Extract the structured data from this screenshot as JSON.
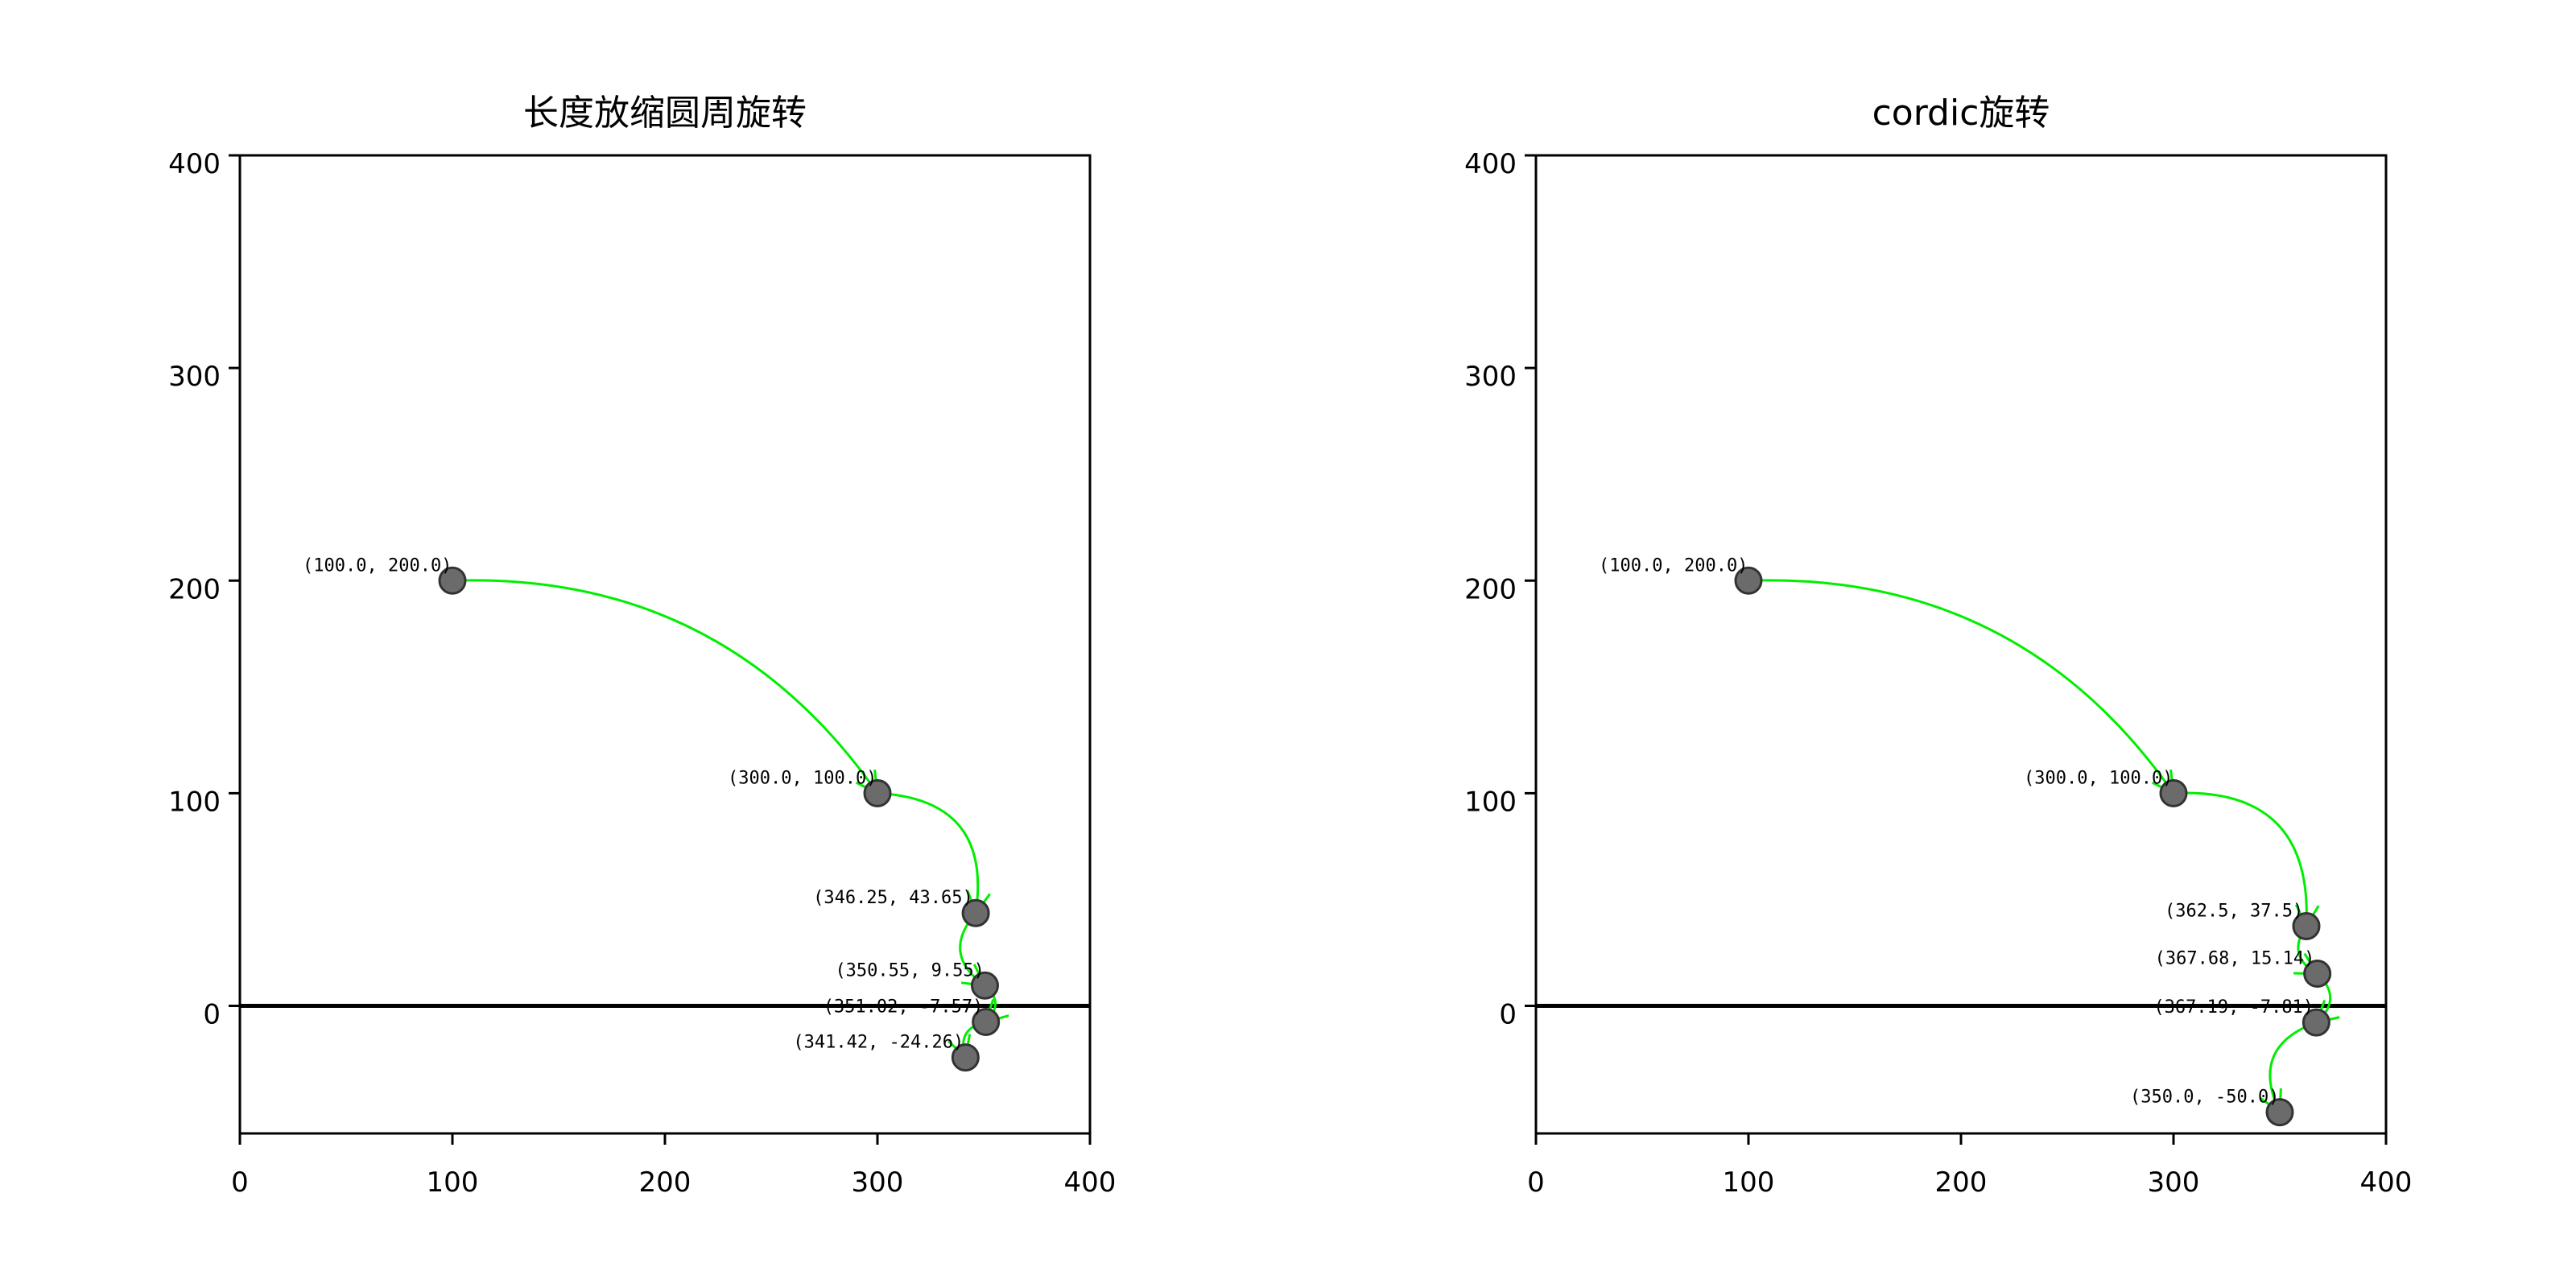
{
  "colors": {
    "point_fill": "#6b6b6b",
    "point_edge": "#333333",
    "arrow": "#00ee00",
    "axis": "#000000",
    "background": "#ffffff"
  },
  "chart_data": [
    {
      "type": "scatter",
      "title": "长度放缩圆周旋转",
      "xlabel": "",
      "ylabel": "",
      "xlim": [
        0,
        400
      ],
      "ylim": [
        -60,
        400
      ],
      "xticks": [
        "0",
        "100",
        "200",
        "300",
        "400"
      ],
      "yticks": [
        "0",
        "100",
        "200",
        "300",
        "400"
      ],
      "grid": false,
      "points": [
        {
          "x": 100.0,
          "y": 200.0,
          "label": "(100.0, 200.0)"
        },
        {
          "x": 300.0,
          "y": 100.0,
          "label": "(300.0, 100.0)"
        },
        {
          "x": 346.25,
          "y": 43.65,
          "label": "(346.25, 43.65)"
        },
        {
          "x": 350.55,
          "y": 9.55,
          "label": "(350.55, 9.55)"
        },
        {
          "x": 351.02,
          "y": -7.57,
          "label": "(351.02, -7.57)"
        },
        {
          "x": 341.42,
          "y": -24.26,
          "label": "(341.42, -24.26)"
        }
      ],
      "reference_line_y": 0
    },
    {
      "type": "scatter",
      "title": "cordic旋转",
      "xlabel": "",
      "ylabel": "",
      "xlim": [
        0,
        400
      ],
      "ylim": [
        -60,
        400
      ],
      "xticks": [
        "0",
        "100",
        "200",
        "300",
        "400"
      ],
      "yticks": [
        "0",
        "100",
        "200",
        "300",
        "400"
      ],
      "grid": false,
      "points": [
        {
          "x": 100.0,
          "y": 200.0,
          "label": "(100.0, 200.0)"
        },
        {
          "x": 300.0,
          "y": 100.0,
          "label": "(300.0, 100.0)"
        },
        {
          "x": 362.5,
          "y": 37.5,
          "label": "(362.5, 37.5)"
        },
        {
          "x": 367.68,
          "y": 15.14,
          "label": "(367.68, 15.14)"
        },
        {
          "x": 367.19,
          "y": -7.81,
          "label": "(367.19, -7.81)"
        },
        {
          "x": 350.0,
          "y": -50.0,
          "label": "(350.0, -50.0)"
        }
      ],
      "reference_line_y": 0
    }
  ]
}
